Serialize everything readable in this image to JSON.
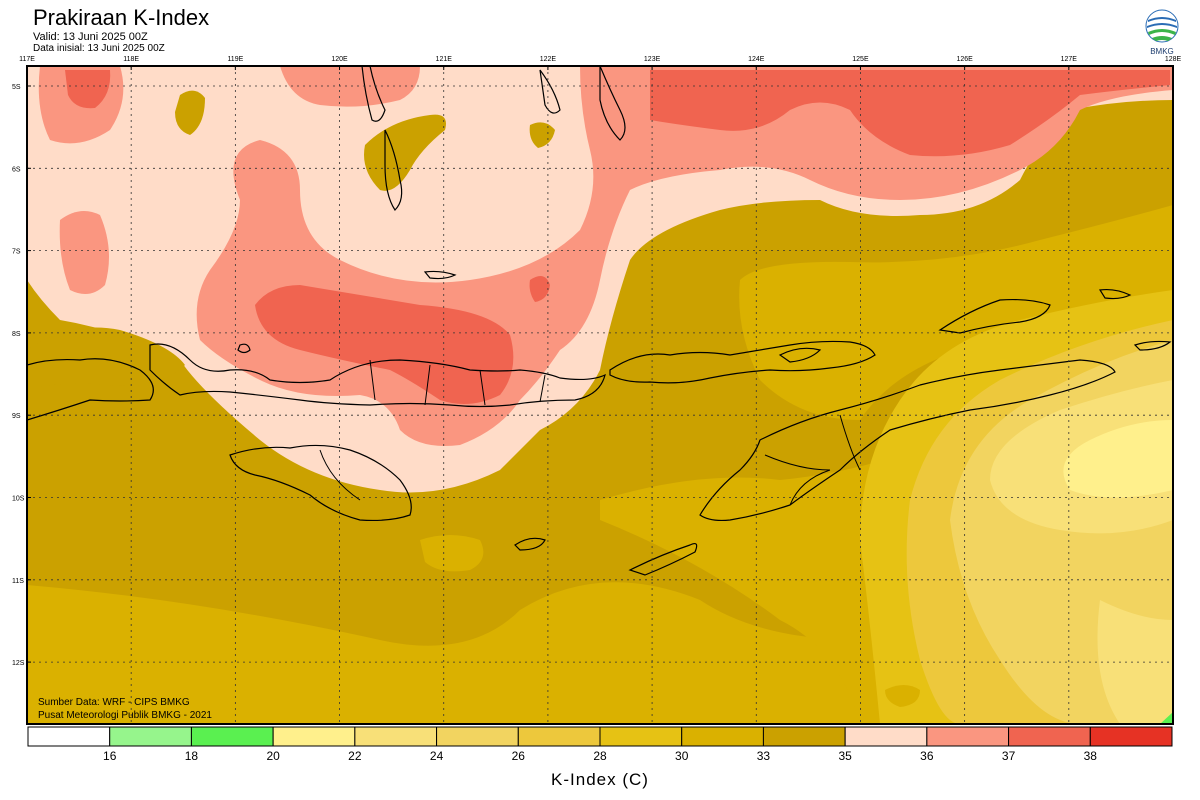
{
  "header": {
    "title": "Prakiraan K-Index",
    "valid": "Valid: 13 Juni 2025 00Z",
    "init": "Data inisial: 13 Juni 2025 00Z",
    "logo_text": "BMKG"
  },
  "map": {
    "lon_ticks": [
      "117E",
      "118E",
      "119E",
      "120E",
      "121E",
      "122E",
      "123E",
      "124E",
      "125E",
      "126E",
      "127E",
      "128E"
    ],
    "lat_ticks": [
      "5S",
      "6S",
      "7S",
      "8S",
      "9S",
      "10S",
      "11S",
      "12S"
    ],
    "source_1": "Sumber Data: WRF - CIPS BMKG",
    "source_2": "Pusat Meteorologi Publik BMKG - 2021"
  },
  "colorbar": {
    "title": "K-Index (C)",
    "colors": [
      "#ffffff",
      "#96f58c",
      "#5af050",
      "#fff08c",
      "#f8e078",
      "#f2d460",
      "#edc83c",
      "#e6c214",
      "#dab100",
      "#cba100",
      "#ffdcc8",
      "#fa9680",
      "#f06450",
      "#e63224"
    ],
    "labels": [
      "16",
      "18",
      "20",
      "22",
      "24",
      "26",
      "28",
      "30",
      "33",
      "35",
      "36",
      "37",
      "38"
    ]
  }
}
